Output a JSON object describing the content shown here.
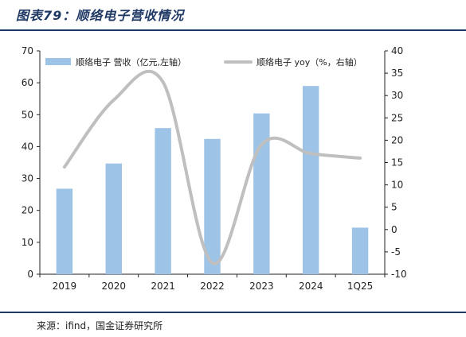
{
  "figure": {
    "title": "图表79：顺络电子营收情况",
    "source": "来源：ifind，国金证券研究所"
  },
  "colors": {
    "title": "#1f3864",
    "bar": "#9dc3e6",
    "line": "#bfbfbf",
    "axis": "#222222"
  },
  "chart_data": {
    "type": "bar",
    "categories": [
      "2019",
      "2020",
      "2021",
      "2022",
      "2023",
      "2024",
      "1Q25"
    ],
    "series": [
      {
        "name": "顺络电子 营收（亿元,左轴）",
        "type": "bar",
        "axis": "left",
        "values": [
          26.8,
          34.7,
          45.8,
          42.4,
          50.4,
          59.0,
          14.6
        ]
      },
      {
        "name": "顺络电子 yoy（%，右轴）",
        "type": "line",
        "axis": "right",
        "values": [
          14.0,
          29.0,
          33.0,
          -7.5,
          19.0,
          17.0,
          16.0
        ]
      }
    ],
    "y_left": {
      "min": 0,
      "max": 70,
      "ticks": [
        "0",
        "10",
        "20",
        "30",
        "40",
        "50",
        "60",
        "70"
      ]
    },
    "y_right": {
      "min": -10,
      "max": 40,
      "ticks": [
        "-10",
        "-5",
        "0",
        "5",
        "10",
        "15",
        "20",
        "25",
        "30",
        "35",
        "40"
      ]
    },
    "legend": "top",
    "grid": false
  }
}
